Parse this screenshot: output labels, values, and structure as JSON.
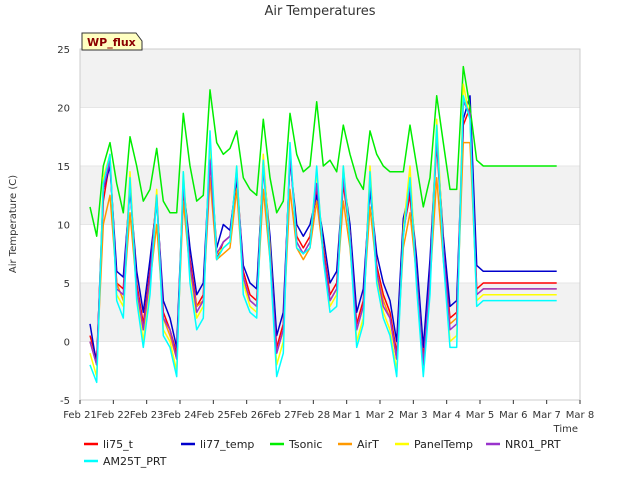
{
  "chart_data": {
    "type": "line",
    "title": "Air Temperatures",
    "xlabel": "Time",
    "ylabel": "Air Temperature (C)",
    "badge": "WP_flux",
    "ylim": [
      -5,
      25
    ],
    "yticks": [
      -5,
      0,
      5,
      10,
      15,
      20,
      25
    ],
    "xlim": [
      0,
      15
    ],
    "xticks": [
      {
        "x": 0,
        "label": "Feb 21"
      },
      {
        "x": 1,
        "label": "Feb 22"
      },
      {
        "x": 2,
        "label": "Feb 23"
      },
      {
        "x": 3,
        "label": "Feb 24"
      },
      {
        "x": 4,
        "label": "Feb 25"
      },
      {
        "x": 5,
        "label": "Feb 26"
      },
      {
        "x": 6,
        "label": "Feb 27"
      },
      {
        "x": 7,
        "label": "Feb 28"
      },
      {
        "x": 8,
        "label": "Mar 1"
      },
      {
        "x": 9,
        "label": "Mar 2"
      },
      {
        "x": 10,
        "label": "Mar 3"
      },
      {
        "x": 11,
        "label": "Mar 4"
      },
      {
        "x": 12,
        "label": "Mar 5"
      },
      {
        "x": 13,
        "label": "Mar 6"
      },
      {
        "x": 14,
        "label": "Mar 7"
      },
      {
        "x": 15,
        "label": "Mar 8"
      }
    ],
    "grid": "horizontal bands",
    "legend_position": "bottom",
    "x": [
      0.3,
      0.5,
      0.7,
      0.9,
      1.1,
      1.3,
      1.5,
      1.7,
      1.9,
      2.1,
      2.3,
      2.5,
      2.7,
      2.9,
      3.1,
      3.3,
      3.5,
      3.7,
      3.9,
      4.1,
      4.3,
      4.5,
      4.7,
      4.9,
      5.1,
      5.3,
      5.5,
      5.7,
      5.9,
      6.1,
      6.3,
      6.5,
      6.7,
      6.9,
      7.1,
      7.3,
      7.5,
      7.7,
      7.9,
      8.1,
      8.3,
      8.5,
      8.7,
      8.9,
      9.1,
      9.3,
      9.5,
      9.7,
      9.9,
      10.1,
      10.3,
      10.5,
      10.7,
      10.9,
      11.1,
      11.3,
      11.5,
      11.7,
      11.9,
      12.1,
      12.3,
      12.5,
      12.7,
      12.9,
      13.1,
      13.3,
      13.5,
      13.7,
      13.9,
      14.1,
      14.3
    ],
    "series": [
      {
        "name": "li75_t",
        "color": "#ff0000",
        "values": [
          0.5,
          -1.5,
          12.0,
          15.5,
          5.0,
          4.5,
          13.5,
          5.0,
          1.5,
          6.0,
          12.5,
          2.5,
          1.0,
          -1.0,
          13.0,
          7.0,
          3.0,
          4.0,
          15.5,
          7.0,
          8.5,
          9.0,
          14.0,
          6.0,
          4.0,
          3.5,
          15.5,
          8.0,
          -0.5,
          1.5,
          16.0,
          9.0,
          8.0,
          9.0,
          13.0,
          8.0,
          4.0,
          5.0,
          13.5,
          9.0,
          1.5,
          3.5,
          13.5,
          6.5,
          4.0,
          2.5,
          -1.0,
          9.5,
          12.5,
          6.0,
          -1.5,
          6.0,
          17.0,
          8.0,
          2.0,
          2.5,
          18.5,
          20.0,
          4.5,
          5.0,
          5.0,
          5.0,
          5.0,
          5.0,
          5.0,
          5.0,
          5.0,
          5.0,
          5.0,
          5.0,
          5.0
        ]
      },
      {
        "name": "li77_temp",
        "color": "#0000cc",
        "values": [
          1.5,
          -2.0,
          13.0,
          15.0,
          6.0,
          5.5,
          13.0,
          6.0,
          2.5,
          7.0,
          12.0,
          3.5,
          2.0,
          -0.5,
          13.5,
          8.0,
          4.0,
          5.0,
          16.0,
          8.0,
          10.0,
          9.5,
          14.0,
          6.5,
          5.0,
          4.5,
          15.0,
          9.0,
          0.5,
          2.5,
          15.5,
          10.0,
          9.0,
          10.0,
          12.5,
          9.0,
          5.0,
          6.0,
          14.0,
          10.0,
          2.5,
          4.5,
          13.0,
          7.5,
          5.0,
          3.5,
          0.0,
          10.5,
          13.0,
          7.0,
          -0.5,
          7.0,
          17.5,
          9.0,
          3.0,
          3.5,
          19.0,
          21.0,
          6.5,
          6.0,
          6.0,
          6.0,
          6.0,
          6.0,
          6.0,
          6.0,
          6.0,
          6.0,
          6.0,
          6.0,
          6.0
        ]
      },
      {
        "name": "Tsonic",
        "color": "#00ee00",
        "values": [
          11.5,
          9.0,
          15.0,
          17.0,
          13.5,
          11.0,
          17.5,
          15.0,
          12.0,
          13.0,
          16.5,
          12.0,
          11.0,
          11.0,
          19.5,
          15.0,
          12.0,
          12.5,
          21.5,
          17.0,
          16.0,
          16.5,
          18.0,
          14.0,
          13.0,
          12.5,
          19.0,
          14.0,
          11.0,
          12.0,
          19.5,
          16.0,
          14.5,
          15.0,
          20.5,
          15.0,
          15.5,
          14.5,
          18.5,
          16.0,
          14.0,
          13.0,
          18.0,
          16.0,
          15.0,
          14.5,
          14.5,
          14.5,
          18.5,
          15.0,
          11.5,
          14.0,
          21.0,
          17.0,
          13.0,
          13.0,
          23.5,
          20.0,
          15.5,
          15.0,
          15.0,
          15.0,
          15.0,
          15.0,
          15.0,
          15.0,
          15.0,
          15.0,
          15.0,
          15.0,
          15.0
        ]
      },
      {
        "name": "AirT",
        "color": "#ff9900",
        "values": [
          0.0,
          -2.0,
          10.0,
          12.5,
          5.0,
          3.5,
          11.0,
          4.5,
          1.0,
          5.0,
          10.0,
          2.0,
          0.5,
          -1.5,
          12.0,
          6.0,
          3.0,
          3.5,
          14.0,
          7.0,
          7.5,
          8.0,
          13.0,
          5.0,
          3.5,
          3.0,
          13.0,
          7.0,
          -1.0,
          1.0,
          13.0,
          8.0,
          7.0,
          8.0,
          12.0,
          7.5,
          3.5,
          4.5,
          12.0,
          8.0,
          1.0,
          3.0,
          11.5,
          6.0,
          3.5,
          2.0,
          -1.5,
          8.0,
          11.0,
          5.5,
          -2.0,
          5.0,
          14.0,
          7.0,
          1.5,
          2.0,
          17.0,
          17.0,
          4.0,
          4.5,
          4.5,
          4.5,
          4.5,
          4.5,
          4.5,
          4.5,
          4.5,
          4.5,
          4.5,
          4.5,
          4.5
        ]
      },
      {
        "name": "PanelTemp",
        "color": "#ffff00",
        "values": [
          -1.0,
          -3.0,
          14.0,
          16.0,
          4.0,
          3.0,
          14.5,
          4.0,
          0.0,
          5.0,
          13.0,
          1.0,
          0.0,
          -2.5,
          14.5,
          6.0,
          2.0,
          3.0,
          17.0,
          7.5,
          8.0,
          8.5,
          15.0,
          5.0,
          3.0,
          2.5,
          16.0,
          8.0,
          -2.0,
          0.0,
          16.5,
          8.5,
          7.5,
          8.5,
          14.5,
          7.5,
          3.0,
          4.0,
          15.0,
          9.0,
          0.0,
          2.0,
          15.0,
          5.5,
          2.5,
          1.0,
          -2.5,
          9.5,
          15.0,
          5.0,
          -2.5,
          5.0,
          19.0,
          8.0,
          0.0,
          0.5,
          22.0,
          19.0,
          3.5,
          4.0,
          4.0,
          4.0,
          4.0,
          4.0,
          4.0,
          4.0,
          4.0,
          4.0,
          4.0,
          4.0,
          4.0
        ]
      },
      {
        "name": "NR01_PRT",
        "color": "#9933cc",
        "values": [
          0.0,
          -2.0,
          13.0,
          15.5,
          4.5,
          4.0,
          13.5,
          4.5,
          1.0,
          5.5,
          12.5,
          2.0,
          1.0,
          -1.5,
          13.5,
          6.5,
          2.5,
          3.5,
          15.5,
          7.5,
          8.5,
          9.0,
          14.5,
          5.5,
          3.5,
          3.0,
          15.0,
          7.5,
          -1.0,
          1.0,
          16.0,
          8.5,
          7.5,
          8.5,
          13.5,
          7.5,
          3.5,
          4.5,
          14.0,
          9.0,
          1.0,
          3.0,
          14.0,
          6.0,
          3.0,
          2.0,
          -1.5,
          9.0,
          13.5,
          5.5,
          -2.0,
          5.5,
          17.5,
          8.0,
          1.0,
          1.5,
          20.5,
          19.5,
          4.0,
          4.5,
          4.5,
          4.5,
          4.5,
          4.5,
          4.5,
          4.5,
          4.5,
          4.5,
          4.5,
          4.5,
          4.5
        ]
      },
      {
        "name": "AM25T_PRT",
        "color": "#00ffff",
        "values": [
          -2.0,
          -3.5,
          13.5,
          16.0,
          3.5,
          2.0,
          14.0,
          3.5,
          -0.5,
          4.0,
          12.5,
          0.5,
          -0.5,
          -3.0,
          14.5,
          5.0,
          1.0,
          2.0,
          18.0,
          7.0,
          8.0,
          8.5,
          15.0,
          4.0,
          2.5,
          2.0,
          15.5,
          7.0,
          -3.0,
          -1.0,
          17.0,
          8.0,
          7.5,
          8.0,
          15.0,
          7.0,
          2.5,
          3.0,
          15.0,
          8.5,
          -0.5,
          1.5,
          14.5,
          5.0,
          2.0,
          0.5,
          -3.0,
          9.0,
          14.0,
          4.5,
          -3.0,
          4.0,
          18.5,
          7.0,
          -0.5,
          -0.5,
          21.0,
          19.0,
          3.0,
          3.5,
          3.5,
          3.5,
          3.5,
          3.5,
          3.5,
          3.5,
          3.5,
          3.5,
          3.5,
          3.5,
          3.5
        ]
      }
    ]
  }
}
